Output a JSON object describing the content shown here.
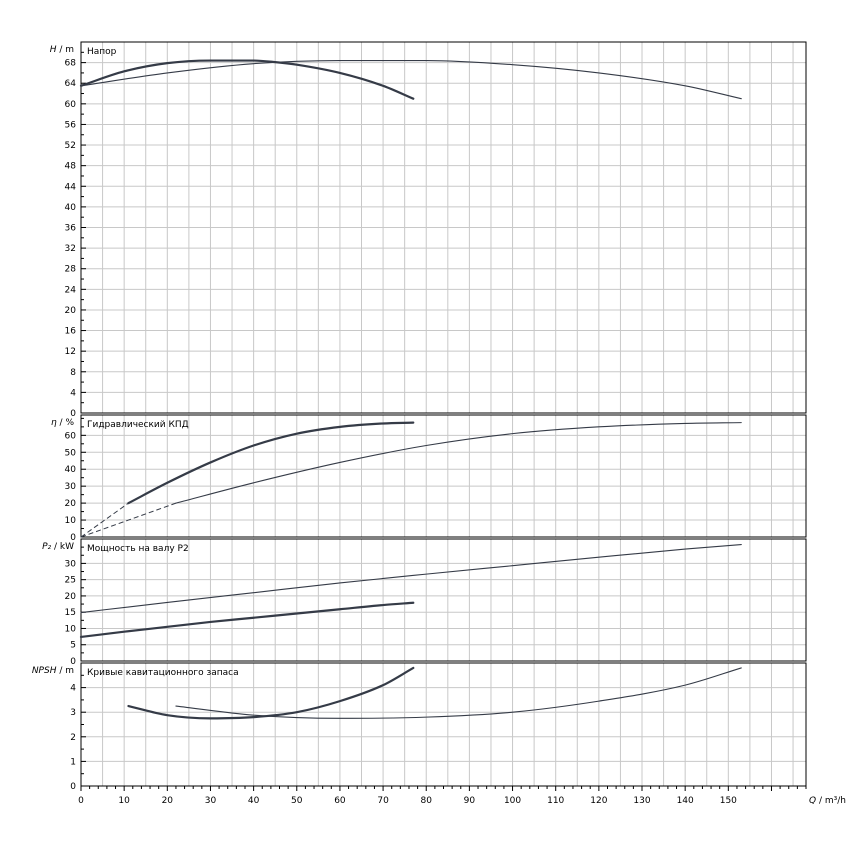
{
  "chart_data": [
    {
      "type": "line",
      "key": "head",
      "title": "Напор",
      "ylabel_symbol": "H",
      "ylabel_unit": "/ m",
      "ylim": [
        0,
        72
      ],
      "yticks": [
        0,
        4,
        8,
        12,
        16,
        20,
        24,
        28,
        32,
        36,
        40,
        44,
        48,
        52,
        56,
        60,
        64,
        68
      ],
      "xlim": [
        0,
        168
      ],
      "grid": true,
      "series": [
        {
          "curve": "single-pump",
          "width": 2.2,
          "x": [
            0,
            10,
            20,
            30,
            40,
            45,
            50,
            60,
            70,
            77
          ],
          "y": [
            63.5,
            66.3,
            67.9,
            68.4,
            68.4,
            68.1,
            67.6,
            66.0,
            63.5,
            61.0
          ]
        },
        {
          "curve": "twin-pump",
          "width": 1.1,
          "x": [
            0,
            20,
            40,
            60,
            80,
            100,
            120,
            140,
            153
          ],
          "y": [
            63.5,
            66.0,
            67.8,
            68.4,
            68.4,
            67.6,
            66.0,
            63.5,
            61.0
          ]
        }
      ]
    },
    {
      "type": "line",
      "key": "efficiency",
      "title": "Гидравлический КПД",
      "ylabel_symbol": "η",
      "ylabel_unit": "/ %",
      "ylim": [
        0,
        72
      ],
      "yticks": [
        0,
        10,
        20,
        30,
        40,
        50,
        60
      ],
      "xlim": [
        0,
        168
      ],
      "grid": true,
      "series": [
        {
          "curve": "single-pump",
          "width": 2.2,
          "dash_until_x": 11,
          "x": [
            0,
            11,
            20,
            30,
            40,
            50,
            60,
            70,
            77
          ],
          "y": [
            0,
            20,
            32,
            44,
            54,
            61,
            65,
            67,
            67.5
          ]
        },
        {
          "curve": "twin-pump",
          "width": 1.1,
          "dash_until_x": 22,
          "x": [
            0,
            22,
            40,
            60,
            80,
            100,
            120,
            140,
            153
          ],
          "y": [
            0,
            20,
            32,
            44,
            54,
            61,
            65,
            67,
            67.5
          ]
        }
      ]
    },
    {
      "type": "line",
      "key": "power",
      "title": "Мощность на валу P2",
      "ylabel_symbol": "P₂",
      "ylabel_unit": "/ kW",
      "ylim": [
        0,
        37.5
      ],
      "yticks": [
        0,
        5,
        10,
        15,
        20,
        25,
        30
      ],
      "xlim": [
        0,
        168
      ],
      "grid": true,
      "series": [
        {
          "curve": "single-pump",
          "width": 2.2,
          "x": [
            0,
            10,
            20,
            30,
            40,
            50,
            60,
            70,
            77
          ],
          "y": [
            7.4,
            9.0,
            10.5,
            12.0,
            13.3,
            14.6,
            15.9,
            17.2,
            17.9
          ]
        },
        {
          "curve": "twin-pump",
          "width": 1.1,
          "x": [
            0,
            20,
            40,
            60,
            80,
            100,
            120,
            140,
            153
          ],
          "y": [
            14.9,
            18.0,
            21.0,
            24.0,
            26.7,
            29.3,
            31.9,
            34.4,
            35.8
          ]
        }
      ]
    },
    {
      "type": "line",
      "key": "npsh",
      "title": "Кривые кавитационного запаса",
      "ylabel_symbol": "NPSH",
      "ylabel_unit": "/ m",
      "ylim": [
        0,
        5
      ],
      "yticks": [
        0,
        1,
        2,
        3,
        4
      ],
      "xlim": [
        0,
        168
      ],
      "xticks": [
        0,
        10,
        20,
        30,
        40,
        50,
        60,
        70,
        80,
        90,
        100,
        110,
        120,
        130,
        140,
        150
      ],
      "xlabel_symbol": "Q",
      "xlabel_unit": "/ m³/h",
      "grid": true,
      "series": [
        {
          "curve": "single-pump",
          "width": 2.2,
          "x": [
            11,
            20,
            30,
            40,
            50,
            60,
            70,
            77
          ],
          "y": [
            3.25,
            2.88,
            2.75,
            2.8,
            3.0,
            3.45,
            4.1,
            4.8
          ]
        },
        {
          "curve": "twin-pump",
          "width": 1.1,
          "x": [
            22,
            40,
            60,
            80,
            100,
            120,
            140,
            153
          ],
          "y": [
            3.25,
            2.88,
            2.75,
            2.8,
            3.0,
            3.45,
            4.1,
            4.8
          ]
        }
      ]
    }
  ]
}
